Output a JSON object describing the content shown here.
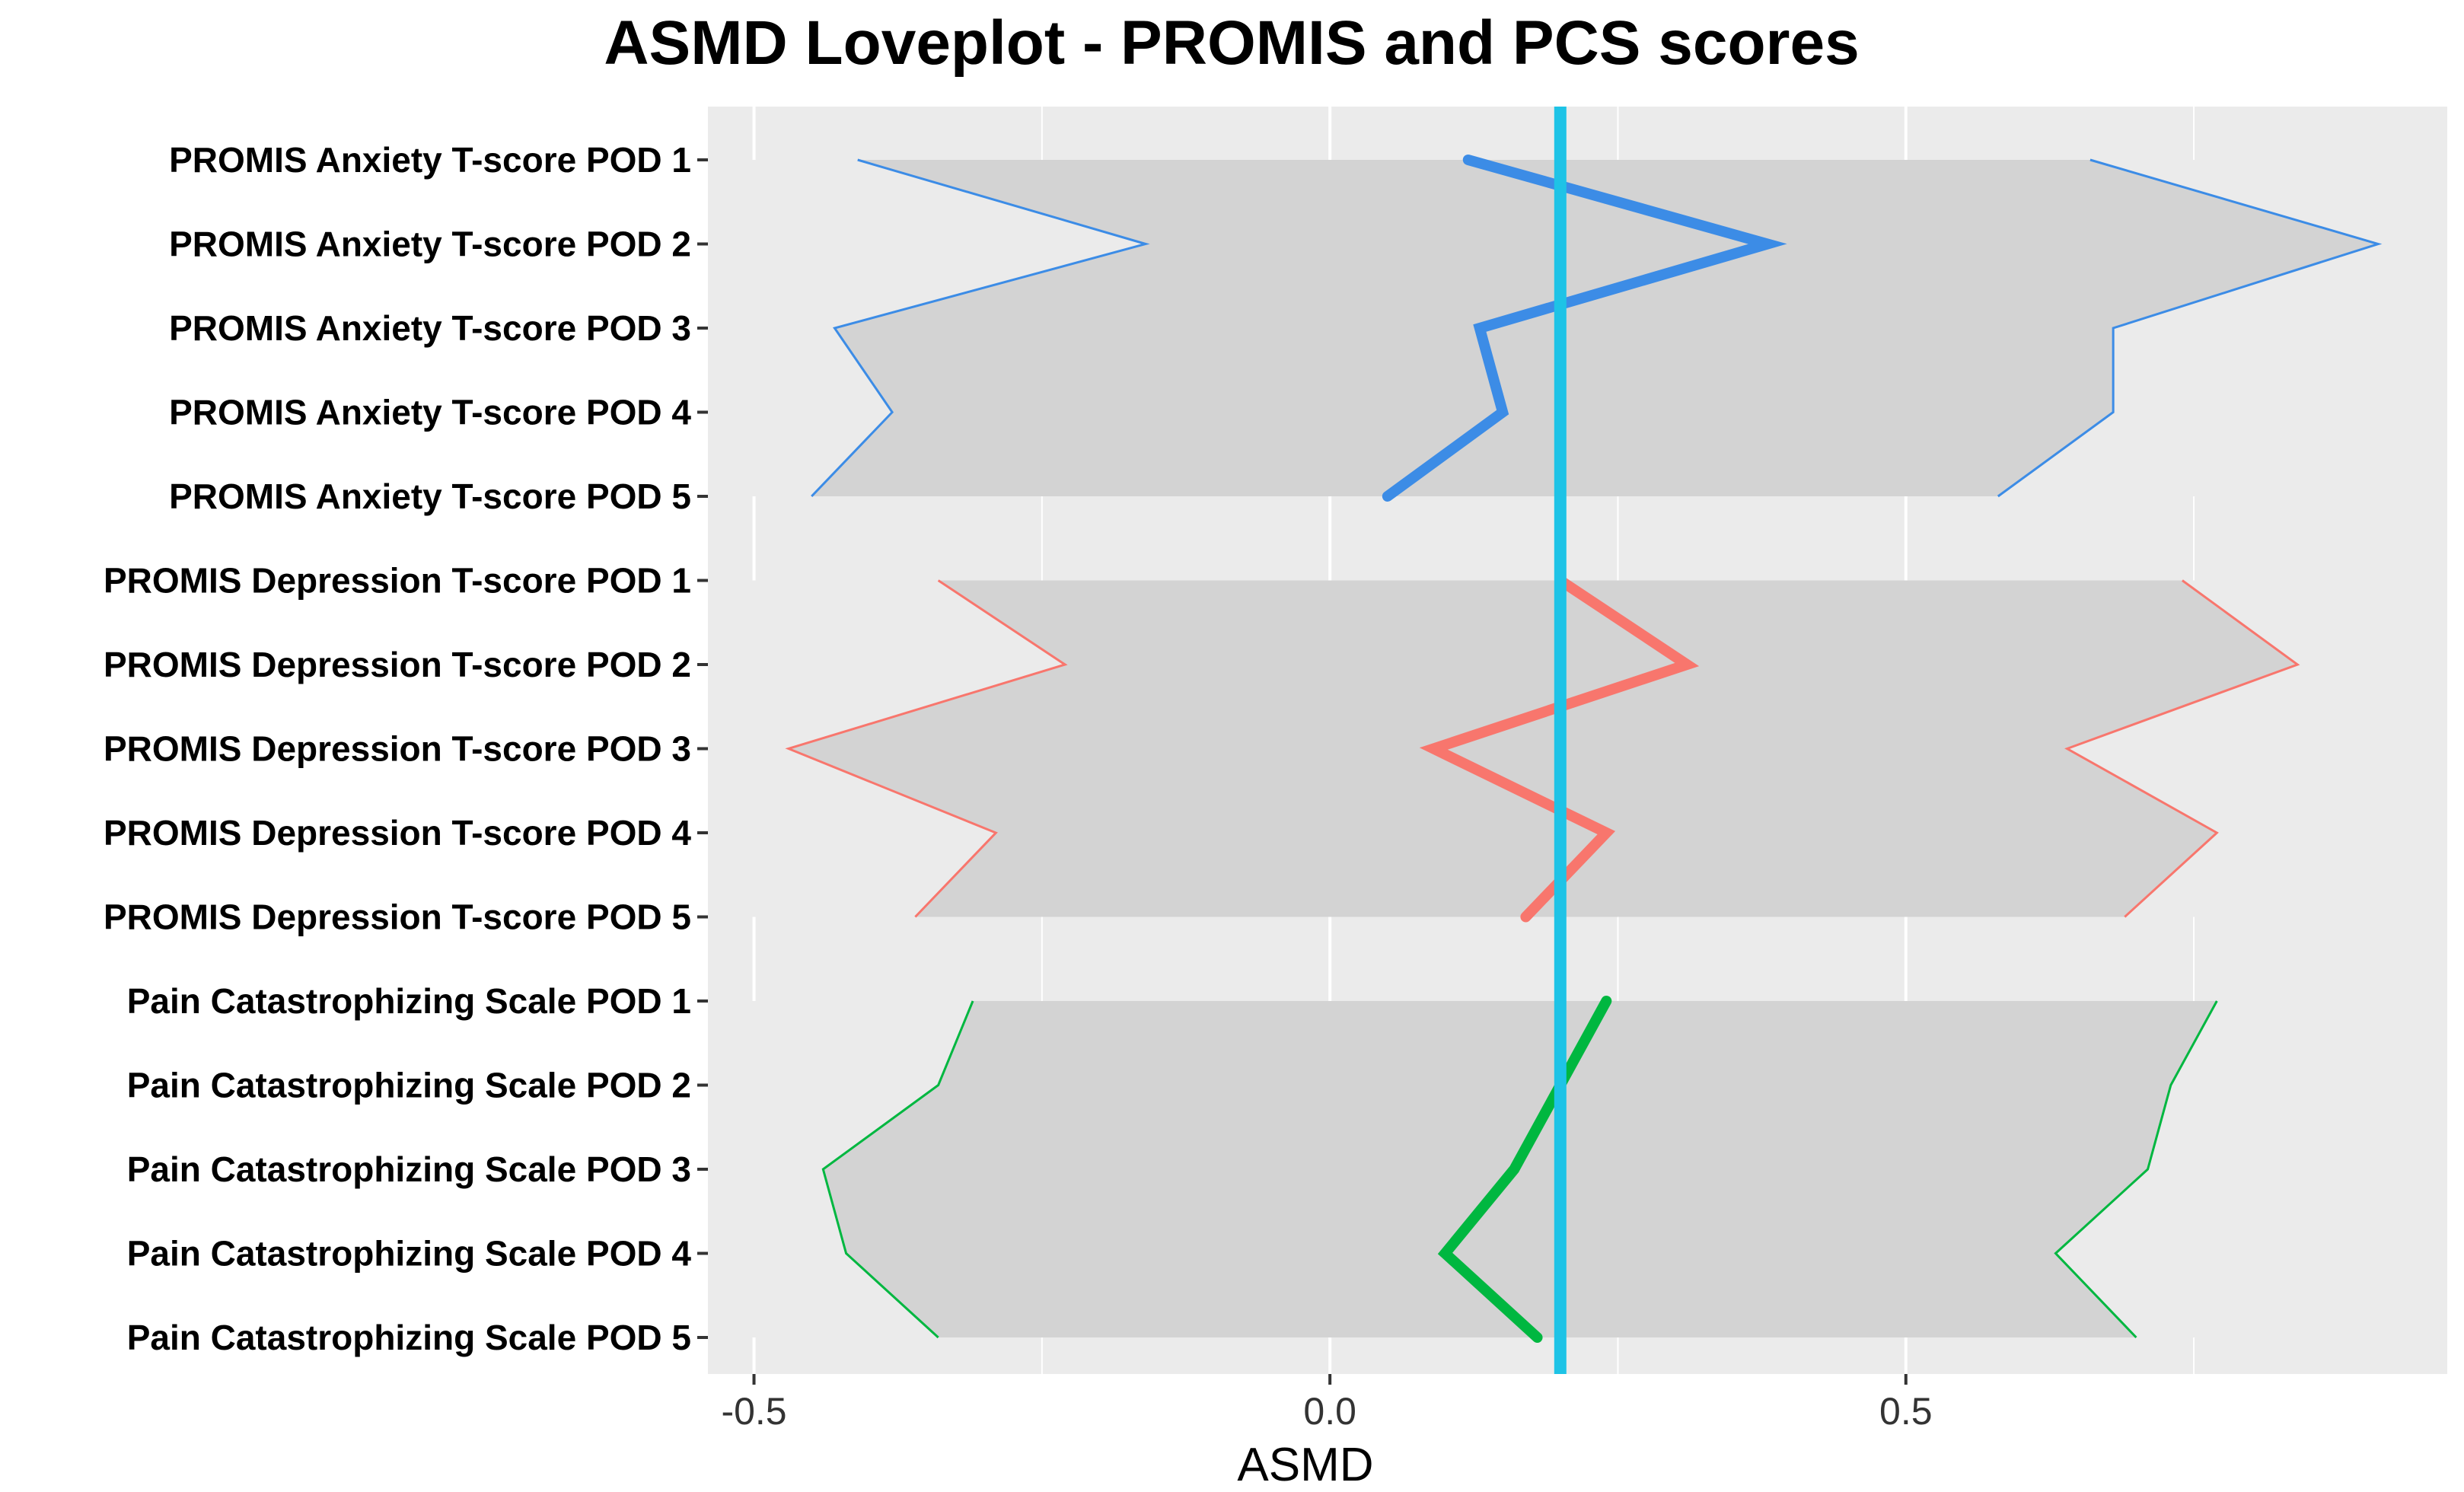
{
  "chart_data": {
    "type": "line",
    "title": "ASMD Loveplot - PROMIS and PCS scores",
    "xlabel": "ASMD",
    "ylabel": "",
    "xlim": [
      -0.54,
      0.97
    ],
    "x_ticks": [
      -0.5,
      0.0,
      0.5
    ],
    "x_tick_labels": [
      "-0.5",
      "0.0",
      "0.5"
    ],
    "reference_line": 0.2,
    "grid": true,
    "legend": "none",
    "categories": [
      "PROMIS Anxiety T-score POD 1",
      "PROMIS Anxiety T-score POD 2",
      "PROMIS Anxiety T-score POD 3",
      "PROMIS Anxiety T-score POD 4",
      "PROMIS Anxiety T-score POD 5",
      "PROMIS Depression T-score POD 1",
      "PROMIS Depression T-score POD 2",
      "PROMIS Depression T-score POD 3",
      "PROMIS Depression T-score POD 4",
      "PROMIS Depression T-score POD 5",
      "Pain Catastrophizing Scale POD 1",
      "Pain Catastrophizing Scale POD 2",
      "Pain Catastrophizing Scale POD 3",
      "Pain Catastrophizing Scale POD 4",
      "Pain Catastrophizing Scale POD 5"
    ],
    "series": [
      {
        "name": "PROMIS Anxiety",
        "color": "#3c8ce6",
        "estimate": [
          0.12,
          0.38,
          0.13,
          0.15,
          0.05
        ],
        "lower": [
          -0.41,
          -0.16,
          -0.43,
          -0.38,
          -0.45
        ],
        "upper": [
          0.66,
          0.91,
          0.68,
          0.68,
          0.58
        ]
      },
      {
        "name": "PROMIS Depression",
        "color": "#f8766d",
        "estimate": [
          0.2,
          0.31,
          0.09,
          0.24,
          0.17
        ],
        "lower": [
          -0.34,
          -0.23,
          -0.47,
          -0.29,
          -0.36
        ],
        "upper": [
          0.74,
          0.84,
          0.64,
          0.77,
          0.69
        ]
      },
      {
        "name": "Pain Catastrophizing Scale",
        "color": "#00b740",
        "estimate": [
          0.24,
          0.2,
          0.16,
          0.1,
          0.18
        ],
        "lower": [
          -0.31,
          -0.34,
          -0.44,
          -0.42,
          -0.34
        ],
        "upper": [
          0.77,
          0.73,
          0.71,
          0.63,
          0.7
        ]
      }
    ],
    "colors": {
      "panel_background": "#ebebeb",
      "ribbon": "#d3d3d3",
      "reference_line": "#1ec3e6",
      "grid": "#ffffff"
    }
  }
}
